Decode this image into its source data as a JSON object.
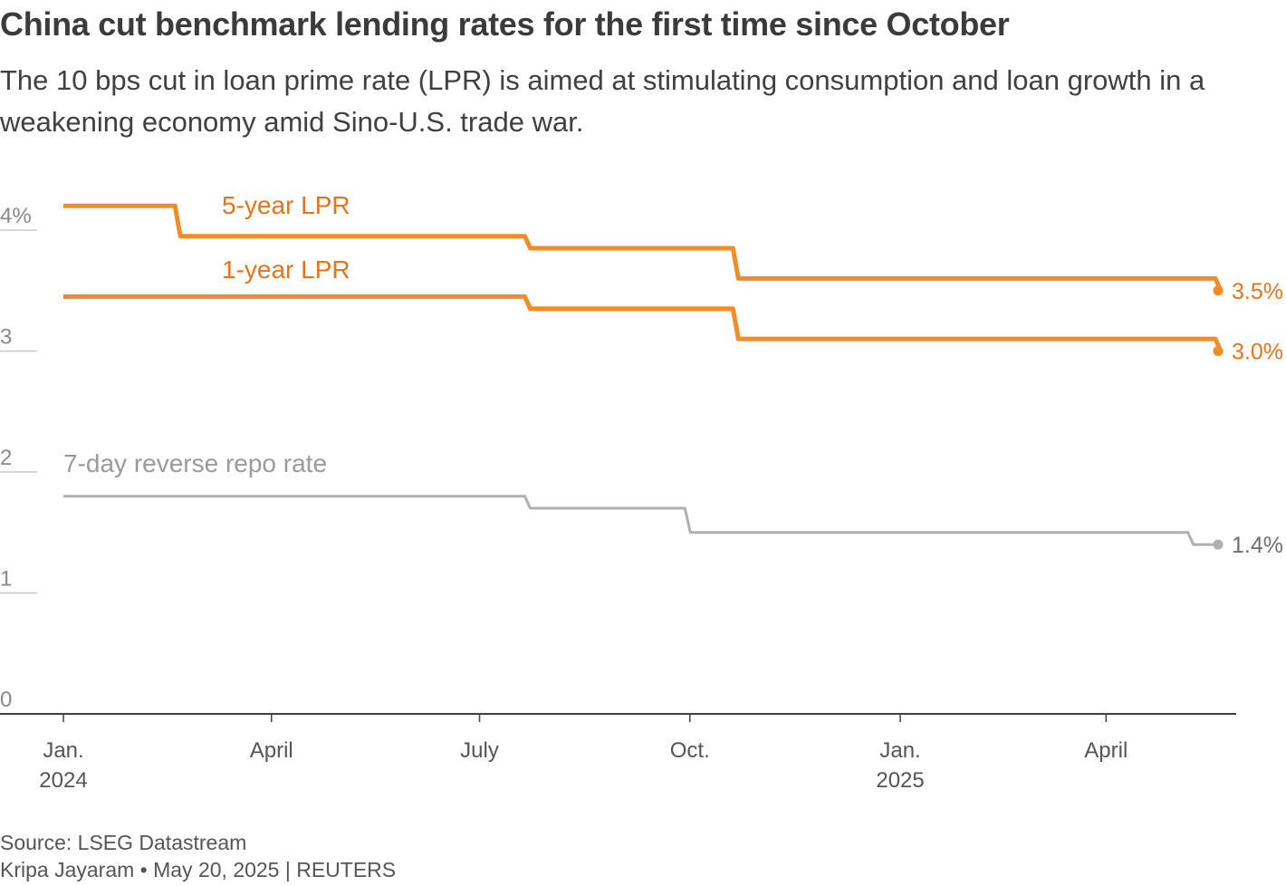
{
  "title": "China cut benchmark lending rates for the first time since October",
  "subtitle": "The 10 bps cut in loan prime rate (LPR) is aimed at stimulating consumption and loan growth in a weakening economy amid Sino-U.S. trade war.",
  "source": "Source: LSEG Datastream",
  "credit": "Kripa Jayaram • May 20, 2025 | REUTERS",
  "colors": {
    "lpr": "#f28c28",
    "repo": "#b0b0b0",
    "axis": "#404040",
    "tick_label": "#8a8a8a",
    "repo_label": "#9a9a9a",
    "end_label_repo": "#6e6e6e",
    "lpr_label": "#e8731a"
  },
  "chart_data": {
    "type": "line",
    "line_shape": "step",
    "title": "China cut benchmark lending rates for the first time since October",
    "xlabel": "",
    "ylabel": "",
    "x_range": [
      "2023-12-25",
      "2025-06-10"
    ],
    "ylim": [
      0,
      4.2
    ],
    "y_ticks": [
      {
        "value": 0,
        "label": "0"
      },
      {
        "value": 1,
        "label": "1"
      },
      {
        "value": 2,
        "label": "2"
      },
      {
        "value": 3,
        "label": "3"
      },
      {
        "value": 4,
        "label": "4%"
      }
    ],
    "x_ticks": [
      {
        "date": "2024-01-01",
        "label": "Jan.",
        "label2": "2024"
      },
      {
        "date": "2024-04-01",
        "label": "April",
        "label2": ""
      },
      {
        "date": "2024-07-01",
        "label": "July",
        "label2": ""
      },
      {
        "date": "2024-10-01",
        "label": "Oct.",
        "label2": ""
      },
      {
        "date": "2025-01-01",
        "label": "Jan.",
        "label2": "2025"
      },
      {
        "date": "2025-04-01",
        "label": "April",
        "label2": ""
      }
    ],
    "series": [
      {
        "name": "5-year LPR",
        "label": "5-year LPR",
        "end_label": "3.5%",
        "color": "#f28c28",
        "points": [
          {
            "date": "2024-01-01",
            "value": 4.2
          },
          {
            "date": "2024-02-20",
            "value": 3.95
          },
          {
            "date": "2024-07-22",
            "value": 3.85
          },
          {
            "date": "2024-10-21",
            "value": 3.6
          },
          {
            "date": "2025-05-20",
            "value": 3.5
          }
        ]
      },
      {
        "name": "1-year LPR",
        "label": "1-year LPR",
        "end_label": "3.0%",
        "color": "#f28c28",
        "points": [
          {
            "date": "2024-01-01",
            "value": 3.45
          },
          {
            "date": "2024-07-22",
            "value": 3.35
          },
          {
            "date": "2024-10-21",
            "value": 3.1
          },
          {
            "date": "2025-05-20",
            "value": 3.0
          }
        ]
      },
      {
        "name": "7-day reverse repo rate",
        "label": "7-day reverse repo rate",
        "end_label": "1.4%",
        "color": "#b0b0b0",
        "points": [
          {
            "date": "2024-01-01",
            "value": 1.8
          },
          {
            "date": "2024-07-22",
            "value": 1.7
          },
          {
            "date": "2024-09-30",
            "value": 1.5
          },
          {
            "date": "2025-05-08",
            "value": 1.4
          },
          {
            "date": "2025-05-20",
            "value": 1.4
          }
        ]
      }
    ]
  }
}
